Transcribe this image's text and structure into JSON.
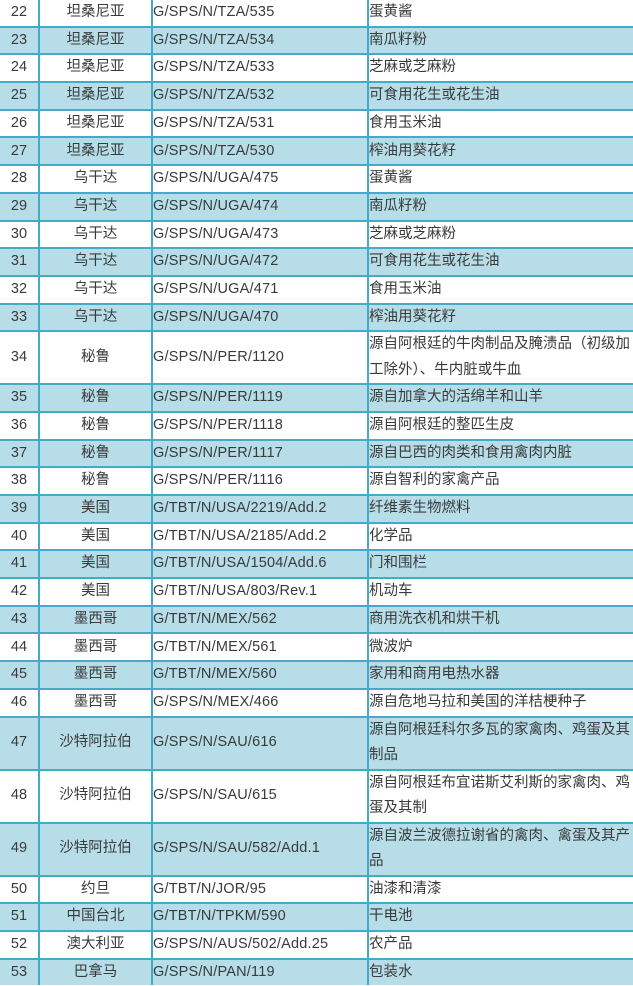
{
  "colors": {
    "row_shade": "#B7DEE8",
    "border": "#45A9C8",
    "text": "#3A3A3A",
    "background": "#FFFFFF"
  },
  "table": {
    "rows": [
      {
        "no": 22,
        "country": "坦桑尼亚",
        "code": "G/SPS/N/TZA/535",
        "product": "蛋黄酱"
      },
      {
        "no": 23,
        "country": "坦桑尼亚",
        "code": "G/SPS/N/TZA/534",
        "product": "南瓜籽粉"
      },
      {
        "no": 24,
        "country": "坦桑尼亚",
        "code": "G/SPS/N/TZA/533",
        "product": "芝麻或芝麻粉"
      },
      {
        "no": 25,
        "country": "坦桑尼亚",
        "code": "G/SPS/N/TZA/532",
        "product": "可食用花生或花生油"
      },
      {
        "no": 26,
        "country": "坦桑尼亚",
        "code": "G/SPS/N/TZA/531",
        "product": "食用玉米油"
      },
      {
        "no": 27,
        "country": "坦桑尼亚",
        "code": "G/SPS/N/TZA/530",
        "product": "榨油用葵花籽"
      },
      {
        "no": 28,
        "country": "乌干达",
        "code": "G/SPS/N/UGA/475",
        "product": "蛋黄酱"
      },
      {
        "no": 29,
        "country": "乌干达",
        "code": "G/SPS/N/UGA/474",
        "product": "南瓜籽粉"
      },
      {
        "no": 30,
        "country": "乌干达",
        "code": "G/SPS/N/UGA/473",
        "product": "芝麻或芝麻粉"
      },
      {
        "no": 31,
        "country": "乌干达",
        "code": "G/SPS/N/UGA/472",
        "product": "可食用花生或花生油"
      },
      {
        "no": 32,
        "country": "乌干达",
        "code": "G/SPS/N/UGA/471",
        "product": "食用玉米油"
      },
      {
        "no": 33,
        "country": "乌干达",
        "code": "G/SPS/N/UGA/470",
        "product": "榨油用葵花籽"
      },
      {
        "no": 34,
        "country": "秘鲁",
        "code": "G/SPS/N/PER/1120",
        "product": "源自阿根廷的牛肉制品及腌渍品（初级加工除外）、牛内脏或牛血",
        "lines": 2
      },
      {
        "no": 35,
        "country": "秘鲁",
        "code": "G/SPS/N/PER/1119",
        "product": "源自加拿大的活绵羊和山羊"
      },
      {
        "no": 36,
        "country": "秘鲁",
        "code": "G/SPS/N/PER/1118",
        "product": "源自阿根廷的整匹生皮"
      },
      {
        "no": 37,
        "country": "秘鲁",
        "code": "G/SPS/N/PER/1117",
        "product": "源自巴西的肉类和食用禽肉内脏"
      },
      {
        "no": 38,
        "country": "秘鲁",
        "code": "G/SPS/N/PER/1116",
        "product": "源自智利的家禽产品"
      },
      {
        "no": 39,
        "country": "美国",
        "code": "G/TBT/N/USA/2219/Add.2",
        "product": "纤维素生物燃料"
      },
      {
        "no": 40,
        "country": "美国",
        "code": "G/TBT/N/USA/2185/Add.2",
        "product": "化学品"
      },
      {
        "no": 41,
        "country": "美国",
        "code": "G/TBT/N/USA/1504/Add.6",
        "product": "门和围栏"
      },
      {
        "no": 42,
        "country": "美国",
        "code": "G/TBT/N/USA/803/Rev.1",
        "product": "机动车"
      },
      {
        "no": 43,
        "country": "墨西哥",
        "code": "G/TBT/N/MEX/562",
        "product": "商用洗衣机和烘干机"
      },
      {
        "no": 44,
        "country": "墨西哥",
        "code": "G/TBT/N/MEX/561",
        "product": "微波炉"
      },
      {
        "no": 45,
        "country": "墨西哥",
        "code": "G/TBT/N/MEX/560",
        "product": "家用和商用电热水器"
      },
      {
        "no": 46,
        "country": "墨西哥",
        "code": "G/SPS/N/MEX/466",
        "product": "源自危地马拉和美国的洋桔梗种子"
      },
      {
        "no": 47,
        "country": "沙特阿拉伯",
        "code": "G/SPS/N/SAU/616",
        "product": "源自阿根廷科尔多瓦的家禽肉、鸡蛋及其制品",
        "lines": 2
      },
      {
        "no": 48,
        "country": "沙特阿拉伯",
        "code": "G/SPS/N/SAU/615",
        "product": "源自阿根廷布宜诺斯艾利斯的家禽肉、鸡蛋及其制",
        "lines": 2
      },
      {
        "no": 49,
        "country": "沙特阿拉伯",
        "code": "G/SPS/N/SAU/582/Add.1",
        "product": "源自波兰波德拉谢省的禽肉、禽蛋及其产品",
        "lines": 2
      },
      {
        "no": 50,
        "country": "约旦",
        "code": "G/TBT/N/JOR/95",
        "product": "油漆和清漆"
      },
      {
        "no": 51,
        "country": "中国台北",
        "code": "G/TBT/N/TPKM/590",
        "product": "干电池"
      },
      {
        "no": 52,
        "country": "澳大利亚",
        "code": "G/SPS/N/AUS/502/Add.25",
        "product": "农产品"
      },
      {
        "no": 53,
        "country": "巴拿马",
        "code": "G/SPS/N/PAN/119",
        "product": "包装水"
      }
    ]
  }
}
